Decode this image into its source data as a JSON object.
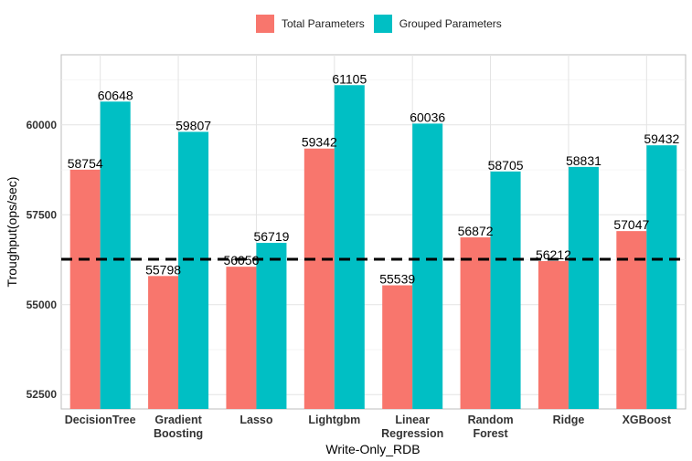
{
  "chart_data": {
    "type": "bar",
    "title": "",
    "xlabel": "Write-Only_RDB",
    "ylabel": "Troughput(ops/sec)",
    "ylim": [
      52100,
      61950
    ],
    "yticks": [
      52500,
      55000,
      57500,
      60000
    ],
    "grid": true,
    "legend_position": "top",
    "categories": [
      [
        "DecisionTree"
      ],
      [
        "Gradient",
        "Boosting"
      ],
      [
        "Lasso"
      ],
      [
        "Lightgbm"
      ],
      [
        "Linear",
        "Regression"
      ],
      [
        "Random",
        "Forest"
      ],
      [
        "Ridge"
      ],
      [
        "XGBoost"
      ]
    ],
    "series": [
      {
        "name": "Total Parameters",
        "color": "#F8766D",
        "values": [
          58754,
          55798,
          56056,
          59342,
          55539,
          56872,
          56212,
          57047
        ]
      },
      {
        "name": "Grouped Parameters",
        "color": "#00BFC4",
        "values": [
          60648,
          59807,
          56719,
          61105,
          60036,
          58705,
          58831,
          59432
        ]
      }
    ],
    "reference_line": {
      "value": 56262,
      "style": "dashed",
      "color": "#000000"
    }
  }
}
